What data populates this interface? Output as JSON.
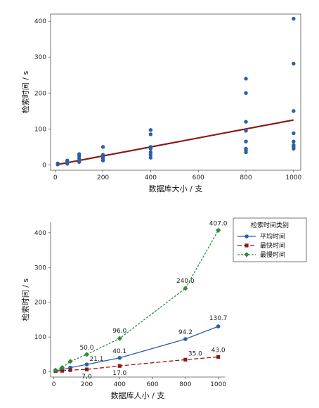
{
  "chart_data": [
    {
      "type": "scatter",
      "xlabel": "数据库大小 / 支",
      "ylabel": "检索时间 / s",
      "xlim": [
        -20,
        1030
      ],
      "ylim": [
        -15,
        420
      ],
      "xticks": [
        0,
        200,
        400,
        600,
        800,
        1000
      ],
      "yticks": [
        0,
        100,
        200,
        300,
        400
      ],
      "colors": {
        "points": "#2a5fa8",
        "fit": "#8b1a1a"
      },
      "points": [
        [
          10,
          2
        ],
        [
          10,
          4
        ],
        [
          10,
          1
        ],
        [
          50,
          3
        ],
        [
          50,
          6
        ],
        [
          50,
          10
        ],
        [
          50,
          12
        ],
        [
          100,
          8
        ],
        [
          100,
          12
        ],
        [
          100,
          18
        ],
        [
          100,
          25
        ],
        [
          100,
          30
        ],
        [
          200,
          12
        ],
        [
          200,
          18
        ],
        [
          200,
          22
        ],
        [
          200,
          28
        ],
        [
          200,
          50
        ],
        [
          400,
          20
        ],
        [
          400,
          28
        ],
        [
          400,
          35
        ],
        [
          400,
          45
        ],
        [
          400,
          50
        ],
        [
          400,
          85
        ],
        [
          400,
          97
        ],
        [
          800,
          35
        ],
        [
          800,
          40
        ],
        [
          800,
          45
        ],
        [
          800,
          65
        ],
        [
          800,
          95
        ],
        [
          800,
          120
        ],
        [
          800,
          200
        ],
        [
          800,
          240
        ],
        [
          1000,
          45
        ],
        [
          1000,
          50
        ],
        [
          1000,
          55
        ],
        [
          1000,
          65
        ],
        [
          1000,
          88
        ],
        [
          1000,
          150
        ],
        [
          1000,
          282
        ],
        [
          1000,
          407
        ]
      ],
      "fit_line": {
        "x": [
          10,
          1000
        ],
        "y": [
          1,
          125
        ]
      }
    },
    {
      "type": "line",
      "xlabel": "数据库人小 / 支",
      "ylabel": "检索时间 / s",
      "xlim": [
        -20,
        1040
      ],
      "ylim": [
        -15,
        430
      ],
      "xticks": [
        0,
        200,
        400,
        600,
        800,
        1000
      ],
      "yticks": [
        0,
        100,
        200,
        300,
        400
      ],
      "legend": {
        "title": "检索时间类别",
        "position": "top-right"
      },
      "x": [
        10,
        50,
        100,
        200,
        400,
        800,
        1000
      ],
      "series": [
        {
          "name": "平均时间",
          "color": "#2a5fa8",
          "marker": "circle",
          "dash": "solid",
          "values": [
            3,
            6,
            12,
            21.1,
            40.1,
            94.2,
            130.7
          ]
        },
        {
          "name": "最快时间",
          "color": "#8b1a1a",
          "marker": "square",
          "dash": "dashed",
          "values": [
            2,
            3,
            5,
            7.0,
            17.0,
            35.0,
            43.0
          ]
        },
        {
          "name": "最慢时间",
          "color": "#2e8b3a",
          "marker": "diamond",
          "dash": "dotted",
          "values": [
            5,
            12,
            30,
            50.0,
            96.0,
            240.0,
            407.0
          ]
        }
      ],
      "data_labels": [
        {
          "series": 0,
          "index": 3,
          "text": "21.1"
        },
        {
          "series": 0,
          "index": 4,
          "text": "40.1"
        },
        {
          "series": 0,
          "index": 5,
          "text": "94.2"
        },
        {
          "series": 0,
          "index": 6,
          "text": "130.7"
        },
        {
          "series": 1,
          "index": 3,
          "text": "7.0"
        },
        {
          "series": 1,
          "index": 4,
          "text": "17.0"
        },
        {
          "series": 1,
          "index": 5,
          "text": "35.0"
        },
        {
          "series": 1,
          "index": 6,
          "text": "43.0"
        },
        {
          "series": 2,
          "index": 3,
          "text": "50.0"
        },
        {
          "series": 2,
          "index": 4,
          "text": "96.0"
        },
        {
          "series": 2,
          "index": 5,
          "text": "240.0"
        },
        {
          "series": 2,
          "index": 6,
          "text": "407.0"
        }
      ]
    }
  ]
}
